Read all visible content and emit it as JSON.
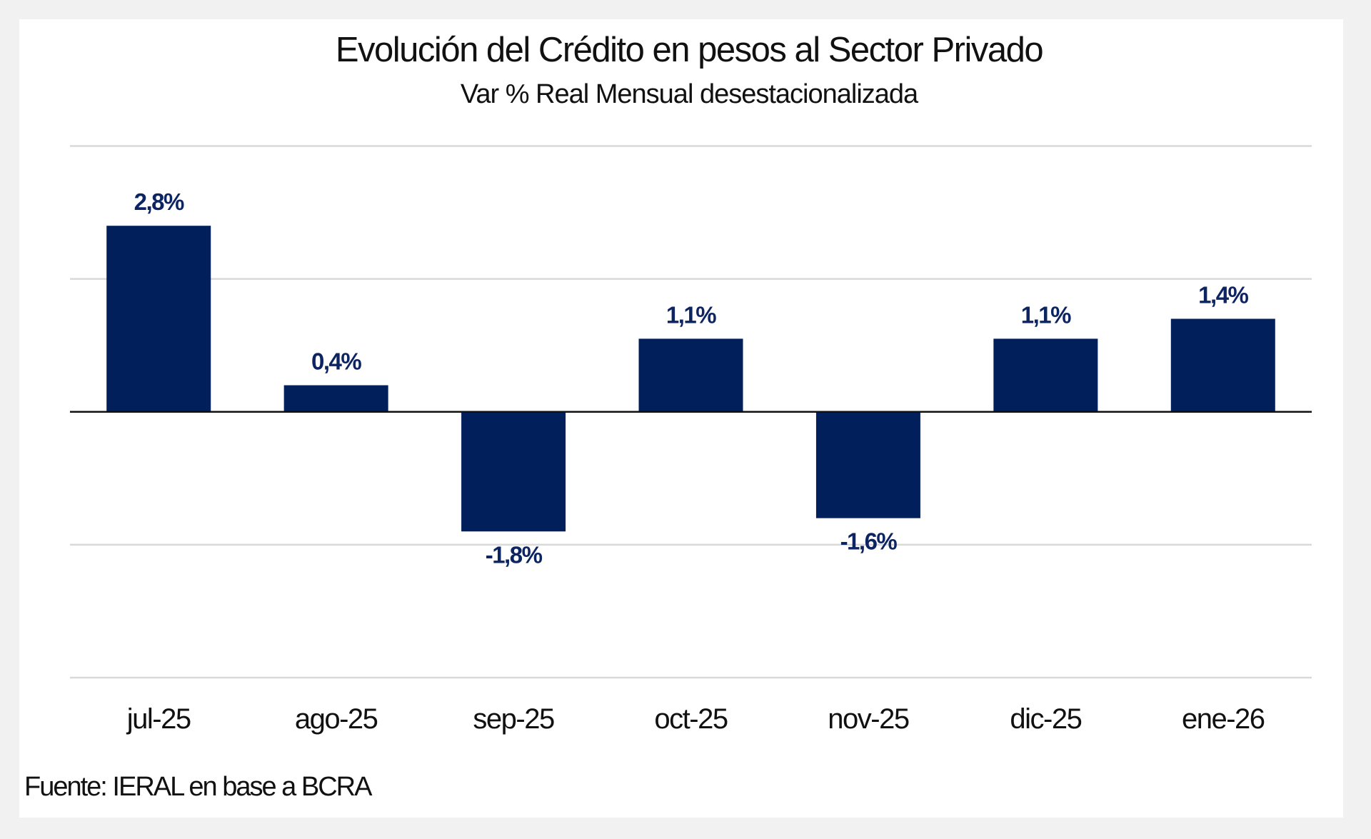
{
  "chart_data": {
    "type": "bar",
    "title": "Evolución del Crédito en pesos al Sector Privado",
    "subtitle": "Var % Real Mensual desestacionalizada",
    "categories": [
      "jul-25",
      "ago-25",
      "sep-25",
      "oct-25",
      "nov-25",
      "dic-25",
      "ene-26"
    ],
    "values": [
      2.8,
      0.4,
      -1.8,
      1.1,
      -1.6,
      1.1,
      1.4
    ],
    "data_labels": [
      "2,8%",
      "0,4%",
      "-1,8%",
      "1,1%",
      "-1,6%",
      "1,1%",
      "1,4%"
    ],
    "xlabel": "",
    "ylabel": "",
    "ylim": [
      -4,
      4
    ],
    "gridlines": [
      -4,
      -2,
      0,
      2,
      4
    ],
    "grid": true,
    "y_tick_labels_shown": false,
    "legend": "none",
    "bar_color": "#001f5b",
    "source": "Fuente: IERAL en base a BCRA"
  }
}
